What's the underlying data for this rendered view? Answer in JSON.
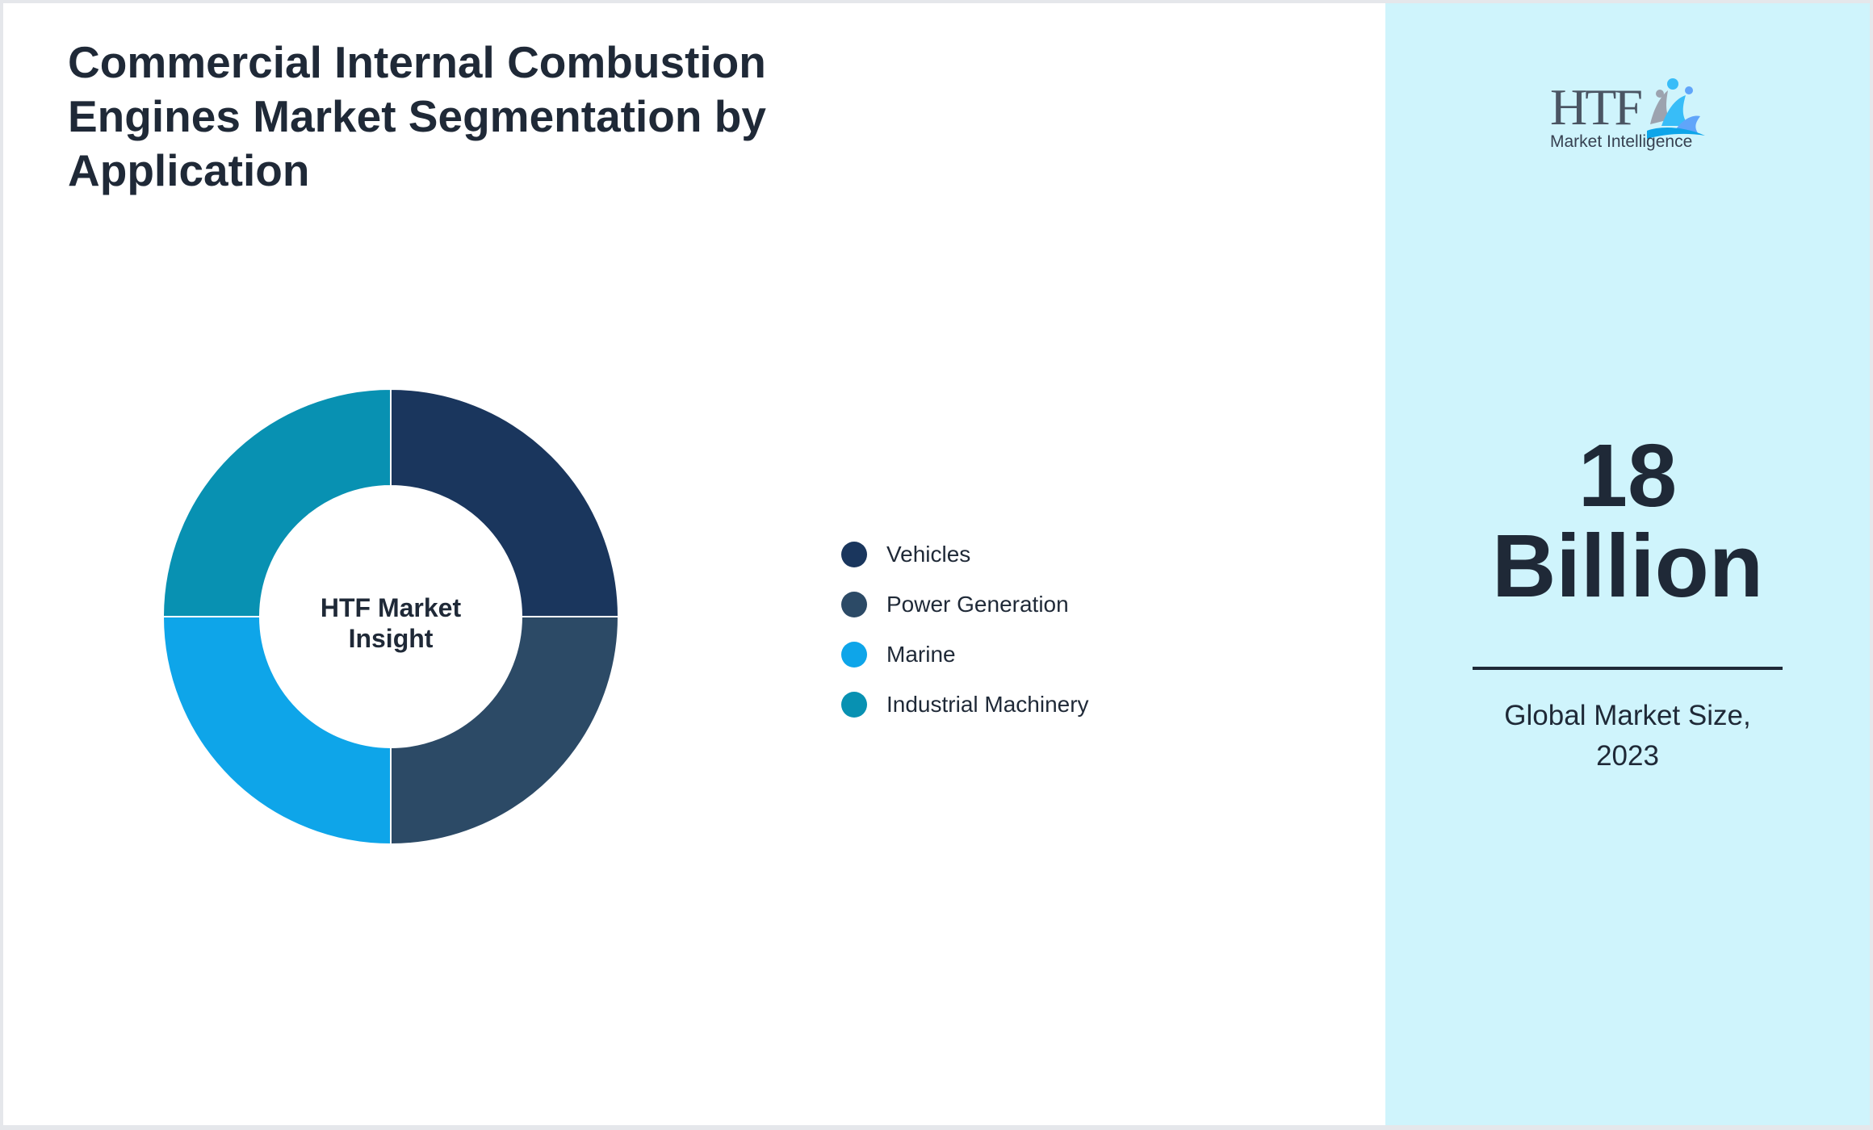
{
  "chart_data": {
    "type": "pie",
    "title": "Commercial Internal Combustion Engines Market Segmentation by Application",
    "center_label_lines": [
      "HTF Market",
      "Insight"
    ],
    "categories": [
      "Vehicles",
      "Power Generation",
      "Marine",
      "Industrial Machinery"
    ],
    "values": [
      25,
      25,
      25,
      25
    ],
    "colors": [
      "#1a365d",
      "#2c4a66",
      "#0ea5e9",
      "#0891b2"
    ],
    "legend_position": "right"
  },
  "logo": {
    "wordmark": "HTF",
    "tagline": "Market Intelligence"
  },
  "kpi": {
    "value_lines": [
      "18",
      "Billion"
    ],
    "caption_lines": [
      "Global Market Size,",
      "2023"
    ]
  },
  "colors": {
    "sidebar_bg": "#cff4fc",
    "text": "#1f2937"
  }
}
